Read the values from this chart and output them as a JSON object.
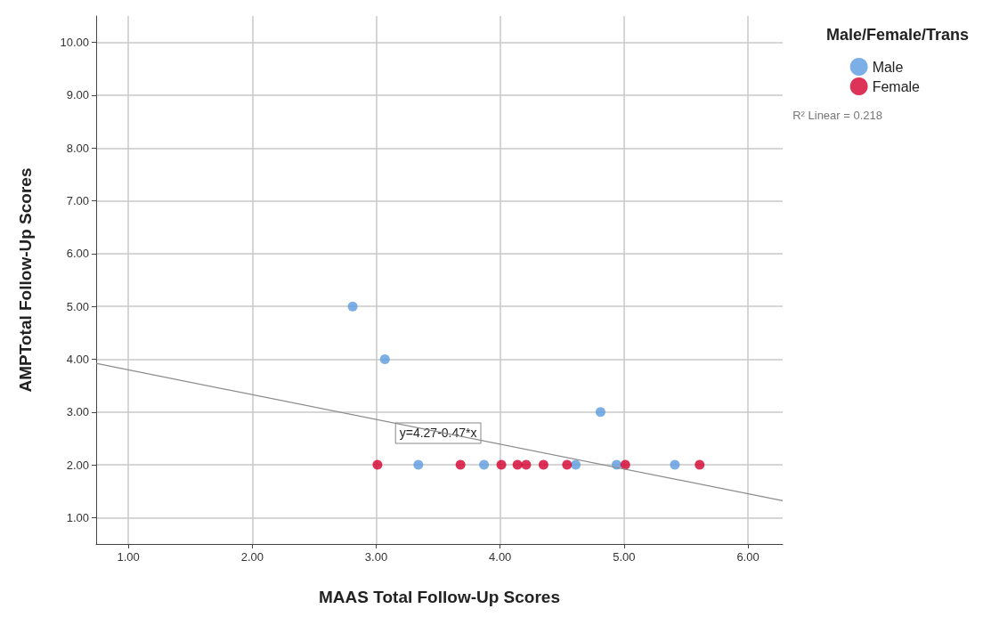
{
  "chart_data": {
    "type": "scatter",
    "xlabel": "MAAS Total Follow-Up Scores",
    "ylabel": "AMPTotal Follow-Up Scores",
    "legend_title": "Male/Female/Trans",
    "series": [
      {
        "name": "Male",
        "color": "#5b9bde",
        "x": [
          2.81,
          3.07,
          3.34,
          3.87,
          4.61,
          4.81,
          4.94,
          5.41
        ],
        "values": [
          5,
          4,
          2,
          2,
          2,
          3,
          2,
          2
        ]
      },
      {
        "name": "Female",
        "color": "#d5002e",
        "x": [
          3.01,
          3.68,
          4.01,
          4.14,
          4.21,
          4.35,
          4.54,
          5.01,
          5.61
        ],
        "values": [
          2,
          2,
          2,
          2,
          2,
          2,
          2,
          2,
          2
        ]
      },
      {
        "type": "line",
        "marker": "none",
        "color": "#8c8c8c",
        "x": [
          0.74,
          6.28
        ],
        "values": [
          3.92,
          1.32
        ]
      }
    ],
    "annotations": [
      {
        "text": "y=4.27-0.47*x",
        "x": 3.5,
        "y": 2.6
      },
      "R² Linear = 0.218"
    ],
    "xlim": [
      0.74,
      6.28
    ],
    "ylim": [
      0.5,
      10.5
    ],
    "xticks": [
      {
        "value": 1,
        "label": "1.00"
      },
      {
        "value": 2,
        "label": "2.00"
      },
      {
        "value": 3,
        "label": "3.00"
      },
      {
        "value": 4,
        "label": "4.00"
      },
      {
        "value": 5,
        "label": "5.00"
      },
      {
        "value": 6,
        "label": "6.00"
      }
    ],
    "yticks": [
      {
        "value": 1,
        "label": "1.00"
      },
      {
        "value": 2,
        "label": "2.00"
      },
      {
        "value": 3,
        "label": "3.00"
      },
      {
        "value": 4,
        "label": "4.00"
      },
      {
        "value": 5,
        "label": "5.00"
      },
      {
        "value": 6,
        "label": "6.00"
      },
      {
        "value": 7,
        "label": "7.00"
      },
      {
        "value": 8,
        "label": "8.00"
      },
      {
        "value": 9,
        "label": "9.00"
      },
      {
        "value": 10,
        "label": "10.00"
      }
    ],
    "grid": true,
    "legend": "top right",
    "marker": "circle"
  }
}
